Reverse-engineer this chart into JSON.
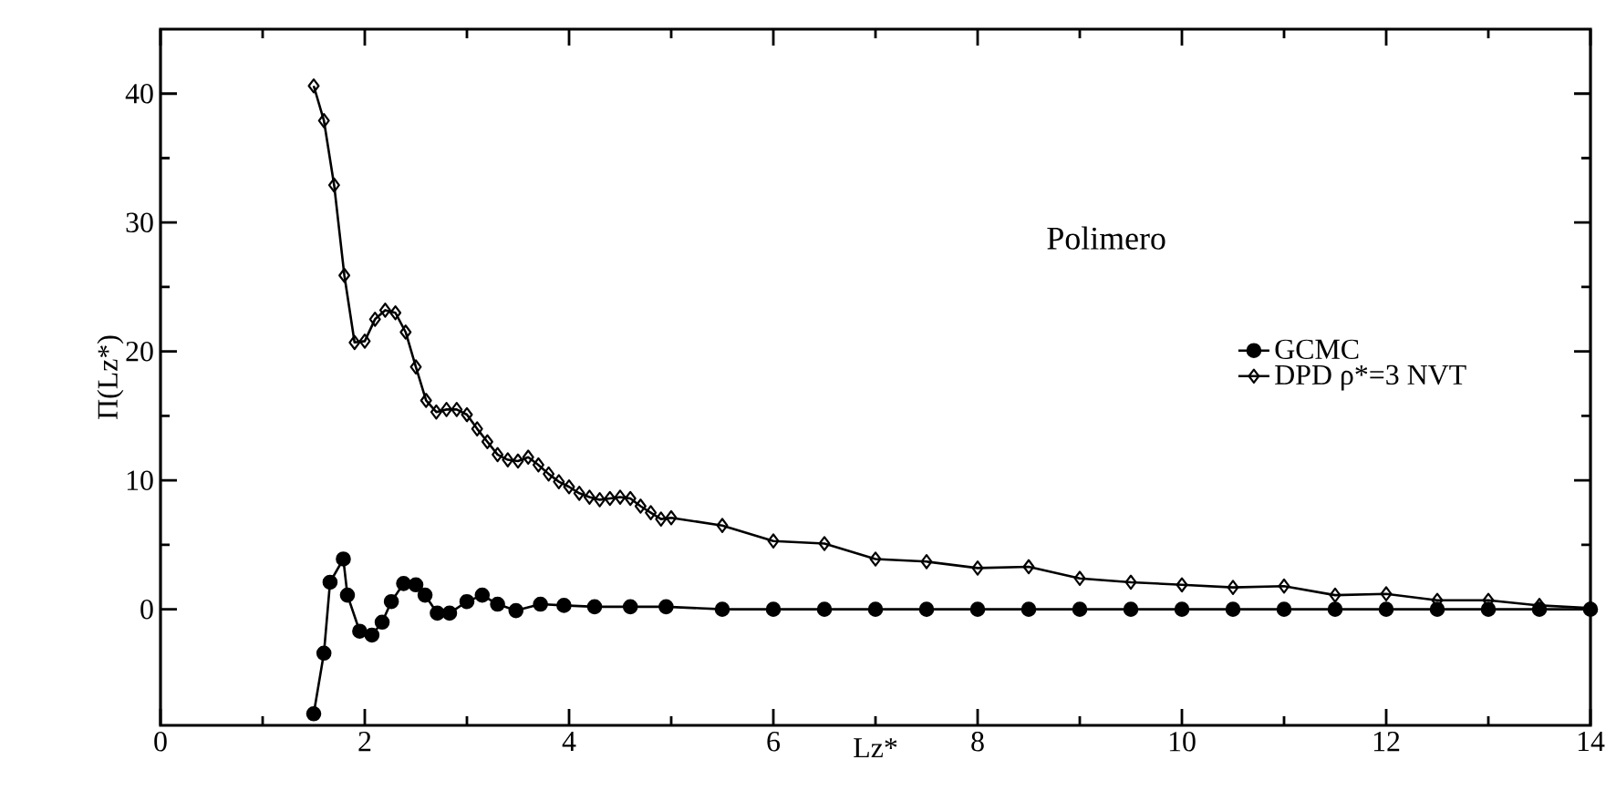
{
  "chart_data": {
    "type": "line",
    "xlabel": "Lz*",
    "ylabel": "Π(Lz*)",
    "annotations": [
      "Polimero"
    ],
    "xlim": [
      0,
      14
    ],
    "ylim": [
      -9,
      45
    ],
    "xticks": [
      0,
      2,
      4,
      6,
      8,
      10,
      12,
      14
    ],
    "yticks": [
      0,
      10,
      20,
      30,
      40
    ],
    "legend": "right",
    "grid": false,
    "line_style": "solid",
    "series": [
      {
        "name": "GCMC",
        "color": "#000000",
        "marker": "circle",
        "x": [
          1.5,
          1.6,
          1.66,
          1.79,
          1.83,
          1.95,
          2.07,
          2.17,
          2.26,
          2.38,
          2.5,
          2.59,
          2.71,
          2.83,
          3.0,
          3.15,
          3.3,
          3.48,
          3.72,
          3.95,
          4.25,
          4.6,
          4.95,
          5.5,
          6,
          6.5,
          7,
          7.5,
          8,
          8.5,
          9,
          9.5,
          10,
          10.5,
          11,
          11.5,
          12,
          12.5,
          13,
          13.5,
          14
        ],
        "values": [
          -8.1,
          -3.4,
          2.1,
          3.9,
          1.1,
          -1.7,
          -2.0,
          -1.0,
          0.6,
          2.0,
          1.9,
          1.1,
          -0.3,
          -0.3,
          0.6,
          1.1,
          0.4,
          -0.1,
          0.4,
          0.3,
          0.2,
          0.2,
          0.2,
          0,
          0,
          0,
          0,
          0,
          0,
          0,
          0,
          0,
          0,
          0,
          0,
          0,
          0,
          0,
          0,
          0,
          0
        ]
      },
      {
        "name": "DPD ρ*=3 NVT",
        "color": "#000000",
        "marker": "diamond",
        "x": [
          1.5,
          1.6,
          1.7,
          1.8,
          1.9,
          2.0,
          2.1,
          2.2,
          2.3,
          2.4,
          2.5,
          2.6,
          2.7,
          2.8,
          2.9,
          3.0,
          3.1,
          3.2,
          3.3,
          3.4,
          3.5,
          3.6,
          3.7,
          3.8,
          3.9,
          4.0,
          4.1,
          4.2,
          4.3,
          4.4,
          4.5,
          4.6,
          4.7,
          4.8,
          4.9,
          5.0,
          5.5,
          6,
          6.5,
          7,
          7.5,
          8,
          8.5,
          9,
          9.5,
          10,
          10.5,
          11,
          11.5,
          12,
          12.5,
          13,
          13.5,
          14
        ],
        "values": [
          40.6,
          37.9,
          32.9,
          25.9,
          20.7,
          20.8,
          22.5,
          23.2,
          23.0,
          21.5,
          18.8,
          16.2,
          15.3,
          15.5,
          15.5,
          15.1,
          14.0,
          13.0,
          12.0,
          11.6,
          11.5,
          11.8,
          11.2,
          10.5,
          9.9,
          9.5,
          9.0,
          8.7,
          8.5,
          8.6,
          8.7,
          8.6,
          8.0,
          7.5,
          7.0,
          7.1,
          6.5,
          5.3,
          5.1,
          3.9,
          3.7,
          3.2,
          3.3,
          2.4,
          2.1,
          1.9,
          1.7,
          1.8,
          1.1,
          1.2,
          0.7,
          0.7,
          0.3,
          0.1
        ]
      }
    ]
  }
}
